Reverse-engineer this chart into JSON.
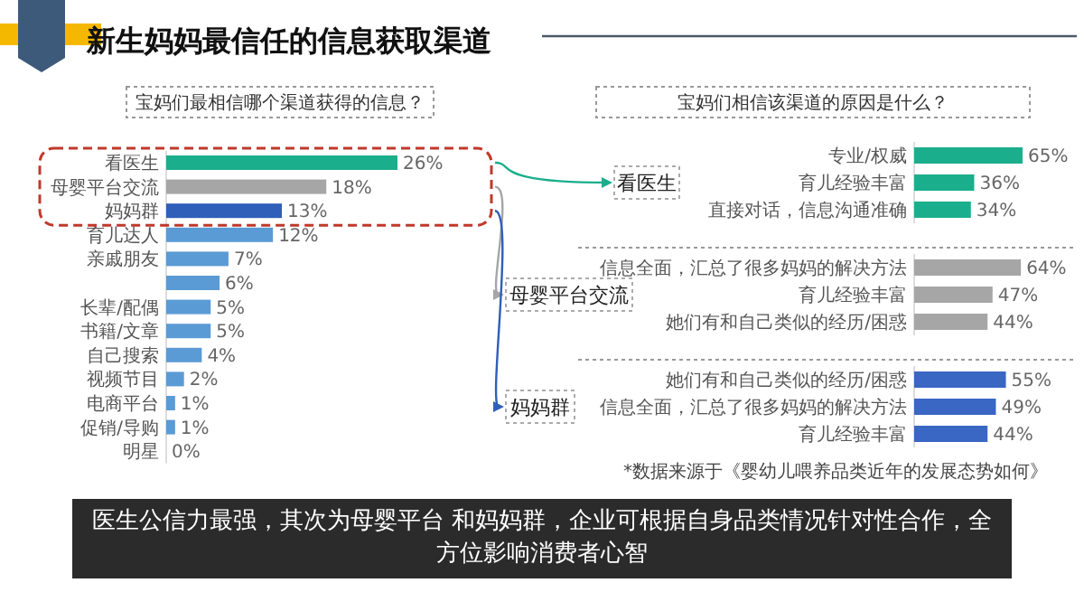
{
  "chart_data": [
    {
      "type": "bar",
      "orientation": "horizontal",
      "title": "新生妈妈最信任的信息获取渠道",
      "subtitle": "宝妈们最相信哪个渠道获得的信息？",
      "categories": [
        "看医生",
        "母婴平台交流",
        "妈妈群",
        "育儿达人",
        "亲戚朋友",
        null,
        "长辈/配偶",
        "书籍/文章",
        "自己搜索",
        "视频节目",
        "电商平台",
        "促销/导购",
        "明星"
      ],
      "values": [
        26,
        18,
        13,
        12,
        7,
        6,
        5,
        5,
        4,
        2,
        1,
        1,
        0
      ],
      "value_labels": [
        "26%",
        "18%",
        "13%",
        "12%",
        "7%",
        "6%",
        "5%",
        "5%",
        "4%",
        "2%",
        "1%",
        "1%",
        "0%"
      ],
      "colors": [
        "#1aae8c",
        "#a6a6a6",
        "#2f5fb8",
        "#5b9bd5",
        "#5b9bd5",
        "#5b9bd5",
        "#5b9bd5",
        "#5b9bd5",
        "#5b9bd5",
        "#5b9bd5",
        "#5b9bd5",
        "#5b9bd5",
        "#5b9bd5"
      ],
      "annotations": [
        "医生公信力最强，其次为母婴平台 和妈妈群，企业可根据自身品类情况针对性合作，全方位影响消费者心智"
      ]
    },
    {
      "type": "bar",
      "orientation": "horizontal",
      "title": "看医生",
      "subtitle": "宝妈们相信该渠道的原因是什么？",
      "categories": [
        "专业/权威",
        "育儿经验丰富",
        "直接对话，信息沟通准确"
      ],
      "values": [
        65,
        36,
        34
      ],
      "value_labels": [
        "65%",
        "36%",
        "34%"
      ],
      "color": "#1aae8c"
    },
    {
      "type": "bar",
      "orientation": "horizontal",
      "title": "母婴平台交流",
      "categories": [
        "信息全面，汇总了很多妈妈的解决方法",
        "育儿经验丰富",
        "她们有和自己类似的经历/困惑"
      ],
      "values": [
        64,
        47,
        44
      ],
      "value_labels": [
        "64%",
        "47%",
        "44%"
      ],
      "color": "#a6a6a6"
    },
    {
      "type": "bar",
      "orientation": "horizontal",
      "title": "妈妈群",
      "categories": [
        "她们有和自己类似的经历/困惑",
        "信息全面，汇总了很多妈妈的解决方法",
        "育儿经验丰富"
      ],
      "values": [
        55,
        49,
        44
      ],
      "value_labels": [
        "55%",
        "49%",
        "44%"
      ],
      "color": "#3a66c4",
      "annotations": [
        "*数据来源于《婴幼儿喂养品类近年的发展态势如何》"
      ]
    }
  ]
}
